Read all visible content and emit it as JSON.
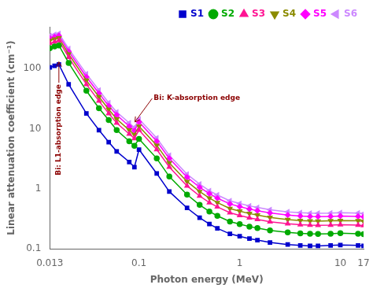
{
  "chart_data": {
    "type": "line",
    "xlabel": "Photon energy (MeV)",
    "ylabel": "Linear attenuation coefficient (cm⁻¹)",
    "log": true,
    "xlim": [
      0.013,
      17
    ],
    "ylim": [
      0.1,
      500
    ],
    "xticks": [
      0.013,
      0.1,
      1,
      10,
      17
    ],
    "yticks": [
      0.1,
      1,
      10,
      100
    ],
    "grid": false,
    "legend": "upper right",
    "x": [
      0.013,
      0.0145,
      0.016,
      0.02,
      0.03,
      0.04,
      0.05,
      0.06,
      0.08,
      0.09,
      0.1,
      0.15,
      0.2,
      0.3,
      0.4,
      0.5,
      0.6,
      0.8,
      1.0,
      1.25,
      1.5,
      2.0,
      3.0,
      4.0,
      5.0,
      6.0,
      8.0,
      10.0,
      15.0,
      17.0
    ],
    "series": [
      {
        "name": "S1",
        "color": "#0000CD",
        "marker": "square",
        "values": [
          105,
          112,
          118,
          55,
          18,
          9.5,
          6.0,
          4.2,
          2.8,
          2.3,
          4.5,
          1.8,
          0.9,
          0.48,
          0.33,
          0.26,
          0.22,
          0.178,
          0.162,
          0.148,
          0.14,
          0.128,
          0.118,
          0.114,
          0.112,
          0.112,
          0.114,
          0.116,
          0.114,
          0.112
        ]
      },
      {
        "name": "S2",
        "color": "#00AA00",
        "marker": "circle",
        "values": [
          220,
          235,
          245,
          125,
          43,
          22,
          14,
          9.5,
          6.2,
          5.2,
          6.8,
          3.2,
          1.6,
          0.8,
          0.54,
          0.42,
          0.355,
          0.285,
          0.258,
          0.235,
          0.222,
          0.203,
          0.188,
          0.181,
          0.178,
          0.177,
          0.179,
          0.182,
          0.179,
          0.176
        ]
      },
      {
        "name": "S3",
        "color": "#FF1493",
        "marker": "triangle-up",
        "values": [
          265,
          280,
          295,
          155,
          55,
          29,
          18,
          12.5,
          8.2,
          6.9,
          9.5,
          4.5,
          2.3,
          1.12,
          0.76,
          0.59,
          0.5,
          0.4,
          0.36,
          0.328,
          0.31,
          0.283,
          0.262,
          0.252,
          0.248,
          0.247,
          0.249,
          0.253,
          0.249,
          0.245
        ]
      },
      {
        "name": "S4",
        "color": "#8B8B00",
        "marker": "triangle-down",
        "values": [
          295,
          310,
          325,
          175,
          64,
          34,
          21,
          14.5,
          9.5,
          8.0,
          11,
          5.3,
          2.7,
          1.32,
          0.9,
          0.7,
          0.59,
          0.47,
          0.425,
          0.387,
          0.365,
          0.333,
          0.308,
          0.297,
          0.292,
          0.29,
          0.293,
          0.297,
          0.293,
          0.288
        ]
      },
      {
        "name": "S5",
        "color": "#FF00FF",
        "marker": "diamond",
        "values": [
          325,
          340,
          355,
          195,
          73,
          39,
          24,
          17,
          11,
          9.3,
          13,
          6.2,
          3.2,
          1.56,
          1.06,
          0.83,
          0.7,
          0.56,
          0.505,
          0.46,
          0.433,
          0.396,
          0.366,
          0.353,
          0.347,
          0.345,
          0.348,
          0.353,
          0.348,
          0.342
        ]
      },
      {
        "name": "S6",
        "color": "#CC88FF",
        "marker": "triangle-left",
        "values": [
          355,
          370,
          385,
          215,
          82,
          44,
          27,
          19,
          12.5,
          10.5,
          14.5,
          7.0,
          3.6,
          1.75,
          1.2,
          0.93,
          0.79,
          0.63,
          0.57,
          0.519,
          0.49,
          0.448,
          0.414,
          0.4,
          0.393,
          0.391,
          0.394,
          0.4,
          0.394,
          0.387
        ]
      }
    ],
    "annotations": [
      {
        "text": "Bi: L1-absorption edge",
        "x": 0.016,
        "y": 130,
        "text_x": 0.016,
        "text_y": 55,
        "color": "#8B0000",
        "orientation": "vertical"
      },
      {
        "text": "Bi: K-absorption edge",
        "x": 0.091,
        "y": 13,
        "text_x": 0.14,
        "text_y": 32,
        "color": "#8B0000",
        "orientation": "horizontal"
      }
    ]
  }
}
